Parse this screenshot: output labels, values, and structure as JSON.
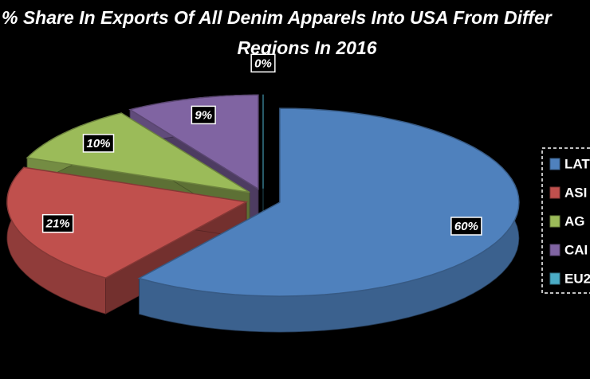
{
  "chart_data": {
    "type": "pie",
    "title": [
      "% Share In Exports Of All Denim Apparels Into USA From Differ",
      "Regions In 2016"
    ],
    "categories": [
      "LAT",
      "ASI",
      "AG",
      "CAI",
      "EU2"
    ],
    "values": [
      60,
      21,
      10,
      9,
      0
    ],
    "value_labels": [
      "60%",
      "21%",
      "10%",
      "9%",
      "0%"
    ],
    "colors": [
      "#4f81bd",
      "#c0504d",
      "#9bbb59",
      "#8064a2",
      "#4bacc6"
    ],
    "legend": "right"
  }
}
